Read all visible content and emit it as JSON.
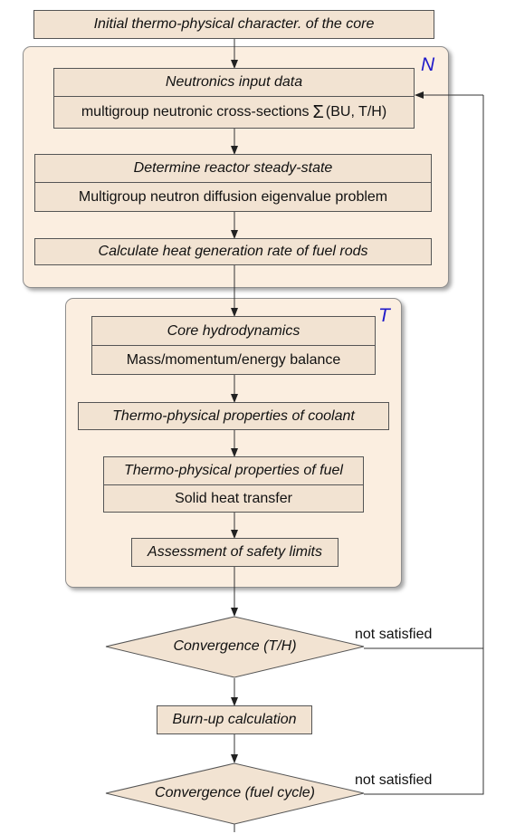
{
  "initial": "Initial thermo-physical character. of the core",
  "neutronics": {
    "group_label": "N",
    "input_title": "Neutronics input data",
    "input_detail_prefix": "multigroup neutronic cross-sections",
    "input_detail_symbol": "Σ",
    "input_detail_suffix": "(BU, T/H)",
    "steady_title": "Determine reactor steady-state",
    "steady_detail": "Multigroup neutron diffusion eigenvalue problem",
    "heat_gen": "Calculate heat generation rate of fuel rods"
  },
  "thermal": {
    "group_label": "T",
    "hydro_title": "Core hydrodynamics",
    "hydro_detail": "Mass/momentum/energy balance",
    "coolant": "Thermo-physical properties of coolant",
    "fuel_title": "Thermo-physical properties of fuel",
    "fuel_detail": "Solid heat transfer",
    "safety": "Assessment of safety limits"
  },
  "convergence_th": "Convergence (T/H)",
  "burnup": "Burn-up calculation",
  "convergence_fuel": "Convergence (fuel cycle)",
  "not_satisfied_1": "not satisfied",
  "not_satisfied_2": "not satisfied",
  "colors": {
    "box_fill": "#f2e3d2",
    "group_fill": "#fbeee0",
    "group_label": "#1f19c9"
  }
}
